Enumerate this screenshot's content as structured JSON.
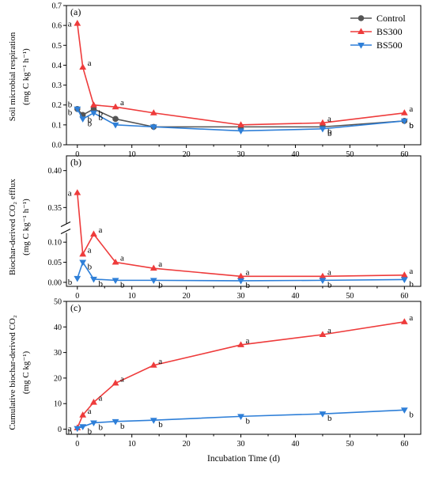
{
  "colors": {
    "control": "#555555",
    "bs300": "#ee3b3b",
    "bs500": "#2e7fd8"
  },
  "legend": [
    "Control",
    "BS300",
    "BS500"
  ],
  "xlabel": "Incubation Time (d)",
  "xticks": [
    "0",
    "10",
    "20",
    "30",
    "40",
    "50",
    "60"
  ],
  "chart_data": [
    {
      "type": "line",
      "panel": "(a)",
      "ylabel_line1": "Soil microbial respiration",
      "ylabel_line2": "(mg C kg⁻¹ h⁻¹)",
      "xlim": [
        -2,
        63
      ],
      "ylim": [
        0,
        0.7
      ],
      "yticks": [
        "0.0",
        "0.1",
        "0.2",
        "0.3",
        "0.4",
        "0.5",
        "0.6",
        "0.7"
      ],
      "x": [
        0,
        1,
        3,
        7,
        14,
        30,
        45,
        60
      ],
      "series": [
        {
          "name": "Control",
          "values": [
            0.18,
            0.15,
            0.18,
            0.13,
            0.09,
            0.09,
            0.09,
            0.12
          ],
          "letters": [
            "b",
            "b",
            "b",
            "",
            "",
            "",
            "b",
            "b"
          ]
        },
        {
          "name": "BS300",
          "values": [
            0.61,
            0.39,
            0.2,
            0.19,
            0.16,
            0.1,
            0.11,
            0.16
          ],
          "letters": [
            "a",
            "a",
            "",
            "a",
            "",
            "",
            "a",
            "a"
          ]
        },
        {
          "name": "BS500",
          "values": [
            0.18,
            0.13,
            0.16,
            0.1,
            0.09,
            0.07,
            0.08,
            0.12
          ],
          "letters": [
            "b",
            "b",
            "b",
            "",
            "",
            "",
            "b",
            "b"
          ]
        }
      ]
    },
    {
      "type": "line",
      "panel": "(b)",
      "ylabel_line1": "Biochar-derived CO₂ efflux",
      "ylabel_line2": "(mg C kg⁻¹ h⁻¹)",
      "xlim": [
        -2,
        63
      ],
      "y_break": true,
      "ylim_lower": [
        -0.01,
        0.12
      ],
      "ylim_upper": [
        0.33,
        0.42
      ],
      "yticks_lower": [
        "0.00",
        "0.05",
        "0.10"
      ],
      "yticks_upper": [
        "0.35",
        "0.40"
      ],
      "x": [
        0,
        1,
        3,
        7,
        14,
        30,
        45,
        60
      ],
      "series": [
        {
          "name": "BS300",
          "values": [
            0.37,
            0.07,
            0.12,
            0.05,
            0.035,
            0.015,
            0.015,
            0.018
          ],
          "letters": [
            "a",
            "a",
            "a",
            "a",
            "a",
            "a",
            "a",
            "a"
          ]
        },
        {
          "name": "BS500",
          "values": [
            0.01,
            0.05,
            0.008,
            0.005,
            0.005,
            0.004,
            0.005,
            0.007
          ],
          "letters": [
            "b",
            "b",
            "b",
            "b",
            "b",
            "b",
            "b",
            "b"
          ]
        }
      ]
    },
    {
      "type": "line",
      "panel": "(c)",
      "ylabel_line1": "Cumulative biochar-derived CO₂",
      "ylabel_line2": "(mg C kg⁻¹)",
      "xlim": [
        -2,
        63
      ],
      "ylim": [
        -2,
        50
      ],
      "yticks": [
        "0",
        "10",
        "20",
        "30",
        "40",
        "50"
      ],
      "x": [
        0,
        1,
        3,
        7,
        14,
        30,
        45,
        60
      ],
      "series": [
        {
          "name": "BS300",
          "values": [
            0.5,
            5.5,
            10.5,
            18,
            25,
            33,
            37,
            42
          ],
          "letters": [
            "a",
            "a",
            "a",
            "a",
            "a",
            "a",
            "a",
            "a"
          ]
        },
        {
          "name": "BS500",
          "values": [
            0.3,
            1.0,
            2.5,
            3.0,
            3.5,
            5.0,
            6.0,
            7.5
          ],
          "letters": [
            "b",
            "b",
            "b",
            "b",
            "b",
            "b",
            "b",
            "b"
          ]
        }
      ]
    }
  ]
}
